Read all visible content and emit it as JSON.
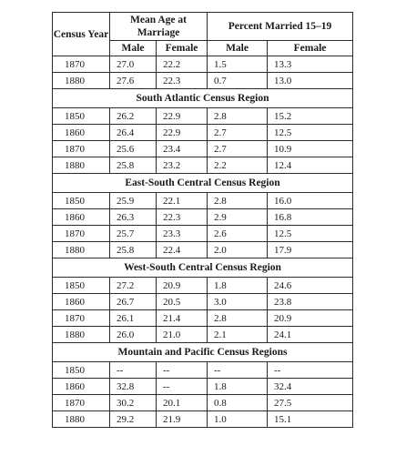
{
  "headers": {
    "census_year": "Census Year",
    "mean_age": "Mean Age at Marriage",
    "percent_married": "Percent Married 15–19",
    "male": "Male",
    "female": "Female"
  },
  "top_rows": [
    {
      "year": "1870",
      "mean_male": "27.0",
      "mean_female": "22.2",
      "pct_male": "1.5",
      "pct_female": "13.3"
    },
    {
      "year": "1880",
      "mean_male": "27.6",
      "mean_female": "22.3",
      "pct_male": "0.7",
      "pct_female": "13.0"
    }
  ],
  "regions": [
    {
      "name": "South Atlantic Census Region",
      "rows": [
        {
          "year": "1850",
          "mean_male": "26.2",
          "mean_female": "22.9",
          "pct_male": "2.8",
          "pct_female": "15.2"
        },
        {
          "year": "1860",
          "mean_male": "26.4",
          "mean_female": "22.9",
          "pct_male": "2.7",
          "pct_female": "12.5"
        },
        {
          "year": "1870",
          "mean_male": "25.6",
          "mean_female": "23.4",
          "pct_male": "2.7",
          "pct_female": "10.9"
        },
        {
          "year": "1880",
          "mean_male": "25.8",
          "mean_female": "23.2",
          "pct_male": "2.2",
          "pct_female": "12.4"
        }
      ]
    },
    {
      "name": "East-South Central Census Region",
      "rows": [
        {
          "year": "1850",
          "mean_male": "25.9",
          "mean_female": "22.1",
          "pct_male": "2.8",
          "pct_female": "16.0"
        },
        {
          "year": "1860",
          "mean_male": "26.3",
          "mean_female": "22.3",
          "pct_male": "2.9",
          "pct_female": "16.8"
        },
        {
          "year": "1870",
          "mean_male": "25.7",
          "mean_female": "23.3",
          "pct_male": "2.6",
          "pct_female": "12.5"
        },
        {
          "year": "1880",
          "mean_male": "25.8",
          "mean_female": "22.4",
          "pct_male": "2.0",
          "pct_female": "17.9"
        }
      ]
    },
    {
      "name": "West-South Central Census Region",
      "rows": [
        {
          "year": "1850",
          "mean_male": "27.2",
          "mean_female": "20.9",
          "pct_male": "1.8",
          "pct_female": "24.6"
        },
        {
          "year": "1860",
          "mean_male": "26.7",
          "mean_female": "20.5",
          "pct_male": "3.0",
          "pct_female": "23.8"
        },
        {
          "year": "1870",
          "mean_male": "26.1",
          "mean_female": "21.4",
          "pct_male": "2.8",
          "pct_female": "20.9"
        },
        {
          "year": "1880",
          "mean_male": "26.0",
          "mean_female": "21.0",
          "pct_male": "2.1",
          "pct_female": "24.1"
        }
      ]
    },
    {
      "name": "Mountain and Pacific Census Regions",
      "rows": [
        {
          "year": "1850",
          "mean_male": "--",
          "mean_female": "--",
          "pct_male": "--",
          "pct_female": "--"
        },
        {
          "year": "1860",
          "mean_male": "32.8",
          "mean_female": "--",
          "pct_male": "1.8",
          "pct_female": "32.4"
        },
        {
          "year": "1870",
          "mean_male": "30.2",
          "mean_female": "20.1",
          "pct_male": "0.8",
          "pct_female": "27.5"
        },
        {
          "year": "1880",
          "mean_male": "29.2",
          "mean_female": "21.9",
          "pct_male": "1.0",
          "pct_female": "15.1"
        }
      ]
    }
  ]
}
